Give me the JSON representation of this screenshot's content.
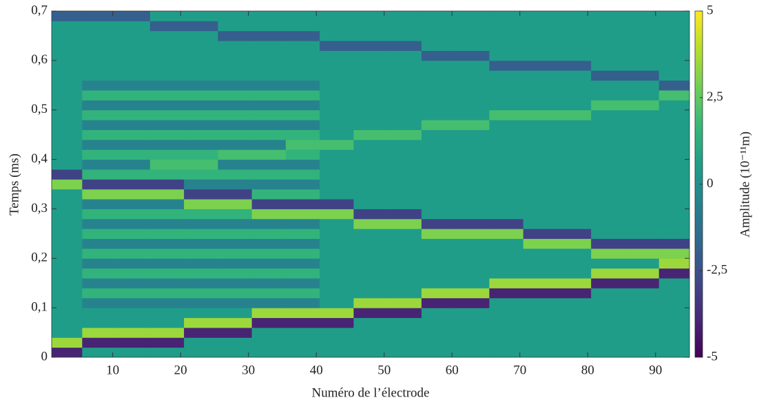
{
  "chart_data": {
    "type": "heatmap",
    "xlabel": "Numéro de l’électrode",
    "ylabel": "Temps (ms)",
    "colorbar_label": "Amplitude (10⁻¹¹m)",
    "colormap": "viridis",
    "x": [
      3,
      8,
      13,
      18,
      23,
      28,
      33,
      38,
      43,
      48,
      53,
      58,
      63,
      68,
      73,
      78,
      83,
      88,
      93
    ],
    "y": [
      0.01,
      0.03,
      0.05,
      0.07,
      0.09,
      0.11,
      0.13,
      0.15,
      0.17,
      0.19,
      0.21,
      0.23,
      0.25,
      0.27,
      0.29,
      0.31,
      0.33,
      0.35,
      0.37,
      0.39,
      0.41,
      0.43,
      0.45,
      0.47,
      0.49,
      0.51,
      0.53,
      0.55,
      0.57,
      0.59,
      0.61,
      0.63,
      0.65,
      0.67,
      0.69
    ],
    "values": [
      [
        -4,
        0.5,
        0.5,
        0.5,
        0.5,
        0.5,
        0.5,
        0.5,
        0.5,
        0.5,
        0.5,
        0.5,
        0.5,
        0.5,
        0.5,
        0.5,
        0.5,
        0.5,
        0.5
      ],
      [
        3.5,
        -4,
        -4,
        -4,
        0.5,
        0.5,
        0.5,
        0.5,
        0.5,
        0.5,
        0.5,
        0.5,
        0.5,
        0.5,
        0.5,
        0.5,
        0.5,
        0.5,
        0.5
      ],
      [
        0.5,
        3.5,
        3.5,
        3.5,
        -4,
        -4,
        0.5,
        0.5,
        0.5,
        0.5,
        0.5,
        0.5,
        0.5,
        0.5,
        0.5,
        0.5,
        0.5,
        0.5,
        0.5
      ],
      [
        0.5,
        0.5,
        0.5,
        0.5,
        3.5,
        3.5,
        -4,
        -4,
        -4,
        0.5,
        0.5,
        0.5,
        0.5,
        0.5,
        0.5,
        0.5,
        0.5,
        0.5,
        0.5
      ],
      [
        0.5,
        0.5,
        0.5,
        0.5,
        0.5,
        0.5,
        3.5,
        3.5,
        3.5,
        -4,
        -4,
        0.5,
        0.5,
        0.5,
        0.5,
        0.5,
        0.5,
        0.5,
        0.5
      ],
      [
        0.5,
        -0.5,
        -0.5,
        -0.5,
        -0.5,
        -0.5,
        -0.5,
        -0.5,
        0.5,
        3.5,
        3.5,
        -4,
        -4,
        0.5,
        0.5,
        0.5,
        0.5,
        0.5,
        0.5
      ],
      [
        0.5,
        1.5,
        1.5,
        1.5,
        1.5,
        1.5,
        1.5,
        1.5,
        0.5,
        0.5,
        0.5,
        3.5,
        3.5,
        -4,
        -4,
        -4,
        0.5,
        0.5,
        0.5
      ],
      [
        0.5,
        -0.5,
        -0.5,
        -0.5,
        -0.5,
        -0.5,
        -0.5,
        -0.5,
        0.5,
        0.5,
        0.5,
        0.5,
        0.5,
        3.5,
        3.5,
        3.5,
        -4,
        -4,
        0.5
      ],
      [
        0.5,
        1.5,
        1.5,
        1.5,
        1.5,
        1.5,
        1.5,
        1.5,
        0.5,
        0.5,
        0.5,
        0.5,
        0.5,
        0.5,
        0.5,
        0.5,
        3.5,
        3.5,
        -4
      ],
      [
        0.5,
        -0.5,
        -0.5,
        -0.5,
        -0.5,
        -0.5,
        -0.5,
        -0.5,
        0.5,
        0.5,
        0.5,
        0.5,
        0.5,
        0.5,
        0.5,
        0.5,
        0.5,
        0.5,
        3.5
      ],
      [
        0.5,
        1.5,
        1.5,
        1.5,
        1.5,
        1.5,
        1.5,
        1.5,
        0.5,
        0.5,
        0.5,
        0.5,
        0.5,
        0.5,
        0.5,
        0.5,
        3,
        3,
        3
      ],
      [
        0.5,
        -0.5,
        -0.5,
        -0.5,
        -0.5,
        -0.5,
        -0.5,
        -0.5,
        0.5,
        0.5,
        0.5,
        0.5,
        0.5,
        0.5,
        3,
        3,
        -3,
        -3,
        -3
      ],
      [
        0.5,
        1.5,
        1.5,
        1.5,
        1.5,
        1.5,
        1.5,
        1.5,
        0.5,
        0.5,
        0.5,
        3,
        3,
        3,
        -3,
        -3,
        0.5,
        0.5,
        0.5
      ],
      [
        0.5,
        -0.5,
        -0.5,
        -0.5,
        -0.5,
        -0.5,
        -0.5,
        -0.5,
        0.5,
        3,
        3,
        -3,
        -3,
        -3,
        0.5,
        0.5,
        0.5,
        0.5,
        0.5
      ],
      [
        0.5,
        1.5,
        1.5,
        1.5,
        1.5,
        1.5,
        3,
        3,
        3,
        -3,
        -3,
        0.5,
        0.5,
        0.5,
        0.5,
        0.5,
        0.5,
        0.5,
        0.5
      ],
      [
        0.5,
        -0.5,
        -0.5,
        -0.5,
        3,
        3,
        -3,
        -3,
        -3,
        0.5,
        0.5,
        0.5,
        0.5,
        0.5,
        0.5,
        0.5,
        0.5,
        0.5,
        0.5
      ],
      [
        0.5,
        3,
        3,
        3,
        -3,
        -3,
        1.5,
        1.5,
        0.5,
        0.5,
        0.5,
        0.5,
        0.5,
        0.5,
        0.5,
        0.5,
        0.5,
        0.5,
        0.5
      ],
      [
        3,
        -3,
        -3,
        -3,
        -0.5,
        -0.5,
        -0.5,
        -0.5,
        0.5,
        0.5,
        0.5,
        0.5,
        0.5,
        0.5,
        0.5,
        0.5,
        0.5,
        0.5,
        0.5
      ],
      [
        -3,
        1.5,
        1.5,
        1.5,
        1.5,
        1.5,
        1.5,
        1.5,
        0.5,
        0.5,
        0.5,
        0.5,
        0.5,
        0.5,
        0.5,
        0.5,
        0.5,
        0.5,
        0.5
      ],
      [
        0.5,
        -0.5,
        -0.5,
        2,
        2,
        -0.5,
        -0.5,
        -0.5,
        0.5,
        0.5,
        0.5,
        0.5,
        0.5,
        0.5,
        0.5,
        0.5,
        0.5,
        0.5,
        0.5
      ],
      [
        0.5,
        1.5,
        1.5,
        1.5,
        1.5,
        2,
        2,
        1.5,
        0.5,
        0.5,
        0.5,
        0.5,
        0.5,
        0.5,
        0.5,
        0.5,
        0.5,
        0.5,
        0.5
      ],
      [
        0.5,
        -0.5,
        -0.5,
        -0.5,
        -0.5,
        -0.5,
        -0.5,
        2,
        2,
        0.5,
        0.5,
        0.5,
        0.5,
        0.5,
        0.5,
        0.5,
        0.5,
        0.5,
        0.5
      ],
      [
        0.5,
        1.5,
        1.5,
        1.5,
        1.5,
        1.5,
        1.5,
        1.5,
        0.5,
        2,
        2,
        0.5,
        0.5,
        0.5,
        0.5,
        0.5,
        0.5,
        0.5,
        0.5
      ],
      [
        0.5,
        -0.5,
        -0.5,
        -0.5,
        -0.5,
        -0.5,
        -0.5,
        -0.5,
        0.5,
        0.5,
        0.5,
        2,
        2,
        0.5,
        0.5,
        0.5,
        0.5,
        0.5,
        0.5
      ],
      [
        0.5,
        1.5,
        1.5,
        1.5,
        1.5,
        1.5,
        1.5,
        1.5,
        0.5,
        0.5,
        0.5,
        0.5,
        0.5,
        2,
        2,
        2,
        0.5,
        0.5,
        0.5
      ],
      [
        0.5,
        -0.5,
        -0.5,
        -0.5,
        -0.5,
        -0.5,
        -0.5,
        -0.5,
        0.5,
        0.5,
        0.5,
        0.5,
        0.5,
        0.5,
        0.5,
        0.5,
        2,
        2,
        0.5
      ],
      [
        0.5,
        1.5,
        1.5,
        1.5,
        1.5,
        1.5,
        1.5,
        1.5,
        0.5,
        0.5,
        0.5,
        0.5,
        0.5,
        0.5,
        0.5,
        0.5,
        0.5,
        0.5,
        2
      ],
      [
        0.5,
        -0.5,
        -0.5,
        -0.5,
        -0.5,
        -0.5,
        -0.5,
        -0.5,
        0.5,
        0.5,
        0.5,
        0.5,
        0.5,
        0.5,
        0.5,
        0.5,
        0.5,
        0.5,
        -2
      ],
      [
        0.5,
        0.5,
        0.5,
        0.5,
        0.5,
        0.5,
        0.5,
        0.5,
        0.5,
        0.5,
        0.5,
        0.5,
        0.5,
        0.5,
        0.5,
        0.5,
        -2,
        -2,
        0.5
      ],
      [
        0.5,
        0.5,
        0.5,
        0.5,
        0.5,
        0.5,
        0.5,
        0.5,
        0.5,
        0.5,
        0.5,
        0.5,
        0.5,
        -2,
        -2,
        -2,
        0.5,
        0.5,
        0.5
      ],
      [
        0.5,
        0.5,
        0.5,
        0.5,
        0.5,
        0.5,
        0.5,
        0.5,
        0.5,
        0.5,
        0.5,
        -2,
        -2,
        0.5,
        0.5,
        0.5,
        0.5,
        0.5,
        0.5
      ],
      [
        0.5,
        0.5,
        0.5,
        0.5,
        0.5,
        0.5,
        0.5,
        0.5,
        -2,
        -2,
        -2,
        0.5,
        0.5,
        0.5,
        0.5,
        0.5,
        0.5,
        0.5,
        0.5
      ],
      [
        0.5,
        0.5,
        0.5,
        0.5,
        0.5,
        -2,
        -2,
        -2,
        0.5,
        0.5,
        0.5,
        0.5,
        0.5,
        0.5,
        0.5,
        0.5,
        0.5,
        0.5,
        0.5
      ],
      [
        0.5,
        0.5,
        0.5,
        -2,
        -2,
        0.5,
        0.5,
        0.5,
        0.5,
        0.5,
        0.5,
        0.5,
        0.5,
        0.5,
        0.5,
        0.5,
        0.5,
        0.5,
        0.5
      ],
      [
        -2,
        -2,
        -2,
        0.5,
        0.5,
        0.5,
        0.5,
        0.5,
        0.5,
        0.5,
        0.5,
        0.5,
        0.5,
        0.5,
        0.5,
        0.5,
        0.5,
        0.5,
        0.5
      ]
    ],
    "xlim": [
      1,
      95
    ],
    "ylim": [
      0,
      0.7
    ],
    "xticks": [
      10,
      20,
      30,
      40,
      50,
      60,
      70,
      80,
      90
    ],
    "yticks": [
      0,
      {
        "value": 0.1,
        "label": "0,1"
      },
      {
        "value": 0.2,
        "label": "0,2"
      },
      {
        "value": 0.3,
        "label": "0,3"
      },
      {
        "value": 0.4,
        "label": "0,4"
      },
      {
        "value": 0.5,
        "label": "0,5"
      },
      {
        "value": 0.6,
        "label": "0,6"
      },
      {
        "value": 0.7,
        "label": "0,7"
      }
    ],
    "clim": [
      -5,
      5
    ],
    "cticks": [
      -5,
      {
        "value": -2.5,
        "label": "-2,5"
      },
      0,
      {
        "value": 2.5,
        "label": "2,5"
      },
      5
    ]
  }
}
